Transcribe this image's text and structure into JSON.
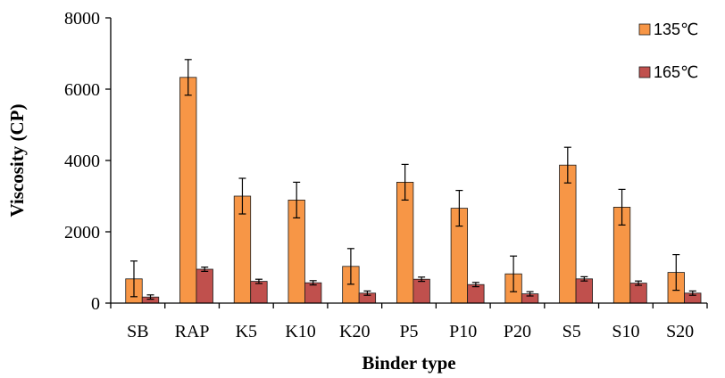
{
  "chart_data": {
    "type": "bar",
    "title": "",
    "xlabel": "Binder type",
    "ylabel": "Viscosity  (CP)",
    "ylim": [
      0,
      8000
    ],
    "yticks": [
      0,
      2000,
      4000,
      6000,
      8000
    ],
    "categories": [
      "SB",
      "RAP",
      "K5",
      "K10",
      "K20",
      "P5",
      "P10",
      "P20",
      "S5",
      "S10",
      "S20"
    ],
    "series": [
      {
        "name": "135℃",
        "color": "#F79646",
        "values": [
          680,
          6330,
          3000,
          2890,
          1030,
          3390,
          2660,
          820,
          3870,
          2690,
          860
        ],
        "errors": [
          500,
          500,
          500,
          500,
          500,
          500,
          500,
          500,
          500,
          500,
          500
        ]
      },
      {
        "name": "165℃",
        "color": "#C0504D",
        "values": [
          170,
          950,
          610,
          570,
          280,
          670,
          520,
          260,
          680,
          560,
          280
        ],
        "errors": [
          60,
          60,
          60,
          60,
          60,
          60,
          60,
          60,
          60,
          60,
          60
        ]
      }
    ],
    "grid": false,
    "legend": "top-right"
  }
}
